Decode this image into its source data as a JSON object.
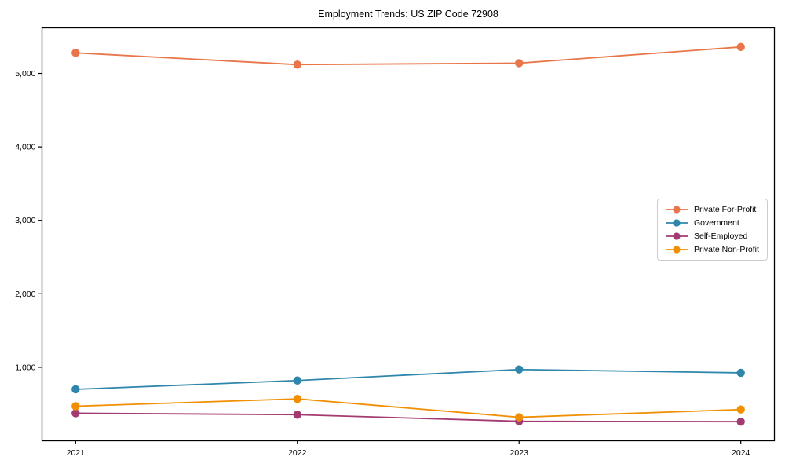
{
  "chart_data": {
    "type": "line",
    "title": "Employment Trends: US ZIP Code 72908",
    "categories": [
      "2021",
      "2022",
      "2023",
      "2024"
    ],
    "series": [
      {
        "name": "Private For-Profit",
        "color": "#E8764A",
        "values": [
          5280,
          5120,
          5140,
          5360
        ]
      },
      {
        "name": "Government",
        "color": "#2E86AB",
        "values": [
          700,
          820,
          970,
          925
        ]
      },
      {
        "name": "Self-Employed",
        "color": "#A23B72",
        "values": [
          375,
          355,
          265,
          260
        ]
      },
      {
        "name": "Private Non-Profit",
        "color": "#F18F01",
        "values": [
          470,
          570,
          320,
          425
        ]
      }
    ],
    "xlabel": "",
    "ylabel": "",
    "ylim": [
      0,
      5620
    ],
    "y_ticks": [
      1000,
      2000,
      3000,
      4000,
      5000
    ],
    "y_tick_labels": [
      "1,000",
      "2,000",
      "3,000",
      "4,000",
      "5,000"
    ],
    "grid": false,
    "legend_position": "center-right",
    "marker": "circle",
    "axis_color": "#000000",
    "tick_label_color": "#000000"
  }
}
